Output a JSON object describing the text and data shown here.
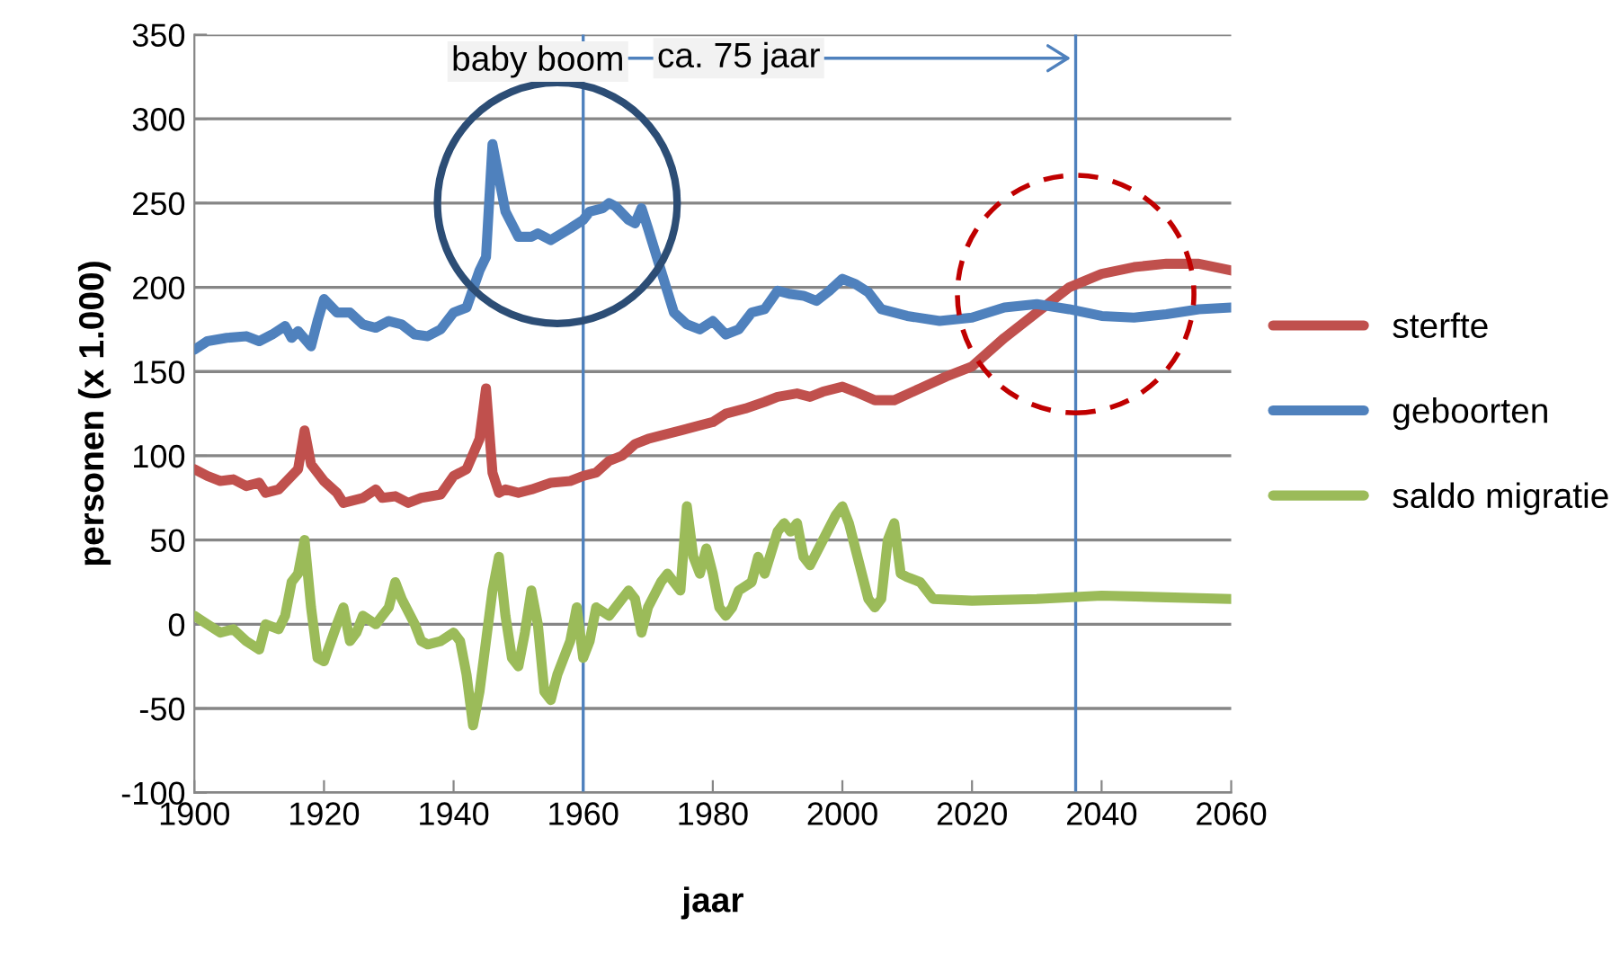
{
  "chart_data": {
    "type": "line",
    "xlabel": "jaar",
    "ylabel": "personen (x 1.000)",
    "xlim": [
      1900,
      2060
    ],
    "xticks": [
      1900,
      1920,
      1940,
      1960,
      1980,
      2000,
      2020,
      2040,
      2060
    ],
    "ylim": [
      -100,
      350
    ],
    "yticks": [
      -100,
      -50,
      0,
      50,
      100,
      150,
      200,
      250,
      300,
      350
    ],
    "grid": "y",
    "legend": "right",
    "marker": "none",
    "line_style": "solid",
    "annotations": [
      "baby boom",
      "ca. 75 jaar"
    ],
    "ref_lines": [
      {
        "axis": "x",
        "value": 1960,
        "label": null,
        "color": "#4f81bd"
      },
      {
        "axis": "x",
        "value": 2036,
        "label": null,
        "color": "#4f81bd"
      }
    ],
    "series": [
      {
        "name": "sterfte",
        "color": "#c0504d",
        "x": [
          1900,
          1902,
          1904,
          1906,
          1908,
          1910,
          1911,
          1913,
          1916,
          1917,
          1918,
          1920,
          1922,
          1923,
          1926,
          1928,
          1929,
          1931,
          1933,
          1935,
          1938,
          1940,
          1942,
          1944,
          1945,
          1946,
          1947,
          1948,
          1950,
          1952,
          1955,
          1958,
          1960,
          1962,
          1964,
          1966,
          1968,
          1970,
          1972,
          1975,
          1978,
          1980,
          1982,
          1985,
          1988,
          1990,
          1993,
          1995,
          1997,
          2000,
          2002,
          2005,
          2008,
          2012,
          2016,
          2020,
          2025,
          2030,
          2035,
          2040,
          2045,
          2050,
          2055,
          2060
        ],
        "values": [
          92,
          88,
          85,
          86,
          82,
          84,
          78,
          80,
          92,
          115,
          95,
          85,
          78,
          72,
          75,
          80,
          75,
          76,
          72,
          75,
          77,
          88,
          92,
          110,
          140,
          90,
          78,
          80,
          78,
          80,
          84,
          85,
          88,
          90,
          97,
          100,
          107,
          110,
          112,
          115,
          118,
          120,
          125,
          128,
          132,
          135,
          137,
          135,
          138,
          141,
          138,
          133,
          133,
          140,
          147,
          153,
          170,
          185,
          200,
          208,
          212,
          214,
          214,
          210
        ]
      },
      {
        "name": "geboorten",
        "color": "#4f81bd",
        "x": [
          1900,
          1902,
          1905,
          1908,
          1910,
          1912,
          1914,
          1915,
          1916,
          1918,
          1919,
          1920,
          1922,
          1924,
          1926,
          1928,
          1930,
          1932,
          1934,
          1936,
          1938,
          1940,
          1942,
          1944,
          1945,
          1946,
          1947,
          1948,
          1950,
          1952,
          1953,
          1955,
          1958,
          1960,
          1961,
          1963,
          1964,
          1965,
          1967,
          1968,
          1969,
          1970,
          1972,
          1974,
          1976,
          1978,
          1980,
          1982,
          1984,
          1986,
          1988,
          1990,
          1992,
          1994,
          1996,
          1998,
          2000,
          2002,
          2004,
          2006,
          2008,
          2010,
          2015,
          2020,
          2025,
          2030,
          2035,
          2040,
          2045,
          2050,
          2055,
          2060
        ],
        "values": [
          163,
          168,
          170,
          171,
          168,
          172,
          177,
          170,
          174,
          165,
          180,
          193,
          185,
          185,
          178,
          176,
          180,
          178,
          172,
          171,
          175,
          185,
          188,
          210,
          218,
          285,
          265,
          245,
          230,
          230,
          232,
          228,
          235,
          240,
          245,
          247,
          250,
          248,
          240,
          238,
          247,
          235,
          210,
          185,
          178,
          175,
          180,
          172,
          175,
          185,
          187,
          198,
          196,
          195,
          192,
          198,
          205,
          202,
          197,
          187,
          185,
          183,
          180,
          182,
          188,
          190,
          187,
          183,
          182,
          184,
          187,
          188
        ]
      },
      {
        "name": "saldo migratie",
        "color": "#9bbb59",
        "x": [
          1900,
          1902,
          1904,
          1906,
          1908,
          1910,
          1911,
          1913,
          1914,
          1915,
          1916,
          1917,
          1918,
          1919,
          1920,
          1922,
          1923,
          1924,
          1925,
          1926,
          1928,
          1929,
          1930,
          1931,
          1932,
          1934,
          1935,
          1936,
          1938,
          1940,
          1941,
          1942,
          1943,
          1944,
          1946,
          1947,
          1948,
          1949,
          1950,
          1951,
          1952,
          1953,
          1954,
          1955,
          1956,
          1958,
          1959,
          1960,
          1961,
          1962,
          1964,
          1966,
          1967,
          1968,
          1969,
          1970,
          1972,
          1973,
          1975,
          1976,
          1977,
          1978,
          1979,
          1980,
          1981,
          1982,
          1983,
          1984,
          1986,
          1987,
          1988,
          1990,
          1991,
          1992,
          1993,
          1994,
          1995,
          1997,
          1999,
          2000,
          2001,
          2002,
          2003,
          2004,
          2005,
          2006,
          2007,
          2008,
          2009,
          2010,
          2012,
          2014,
          2020,
          2030,
          2040,
          2050,
          2060
        ],
        "values": [
          5,
          0,
          -5,
          -3,
          -10,
          -15,
          0,
          -3,
          5,
          25,
          30,
          50,
          10,
          -20,
          -22,
          0,
          10,
          -10,
          -5,
          5,
          0,
          5,
          10,
          25,
          15,
          0,
          -10,
          -12,
          -10,
          -5,
          -10,
          -30,
          -60,
          -40,
          20,
          40,
          5,
          -20,
          -25,
          -5,
          20,
          0,
          -40,
          -45,
          -30,
          -10,
          10,
          -20,
          -10,
          10,
          5,
          15,
          20,
          15,
          -5,
          10,
          25,
          30,
          20,
          70,
          40,
          30,
          45,
          30,
          10,
          5,
          10,
          20,
          25,
          40,
          30,
          55,
          60,
          55,
          60,
          40,
          35,
          50,
          65,
          70,
          60,
          45,
          30,
          15,
          10,
          15,
          50,
          60,
          30,
          28,
          25,
          15,
          14,
          15,
          17,
          16,
          15
        ]
      }
    ]
  }
}
